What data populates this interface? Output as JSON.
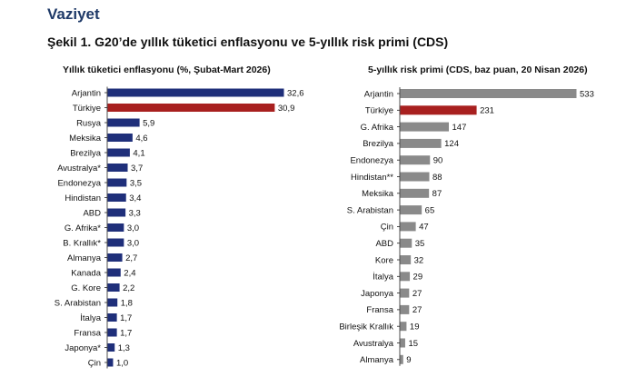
{
  "header": {
    "section_title": "Vaziyet",
    "figure_title": "Şekil 1. G20’de yıllık tüketici enflasyonu ve 5-yıllık risk primi (CDS)"
  },
  "colors": {
    "left_bar": "#1f2f7a",
    "right_bar": "#8a8a8a",
    "highlight": "#a8201f"
  },
  "chart_data": [
    {
      "type": "bar",
      "orientation": "horizontal",
      "title": "Yıllık tüketici enflasyonu (%, Şubat-Mart 2026)",
      "highlight_category": "Türkiye",
      "categories": [
        "Arjantin",
        "Türkiye",
        "Rusya",
        "Meksika",
        "Brezilya",
        "Avustralya*",
        "Endonezya",
        "Hindistan",
        "ABD",
        "G. Afrika*",
        "B. Krallık*",
        "Almanya",
        "Kanada",
        "G. Kore",
        "S. Arabistan",
        "İtalya",
        "Fransa",
        "Japonya*",
        "Çin"
      ],
      "values": [
        32.6,
        30.9,
        5.9,
        4.6,
        4.1,
        3.7,
        3.5,
        3.4,
        3.3,
        3.0,
        3.0,
        2.7,
        2.4,
        2.2,
        1.8,
        1.7,
        1.7,
        1.3,
        1.0
      ],
      "value_labels": [
        "32,6",
        "30,9",
        "5,9",
        "4,6",
        "4,1",
        "3,7",
        "3,5",
        "3,4",
        "3,3",
        "3,0",
        "3,0",
        "2,7",
        "2,4",
        "2,2",
        "1,8",
        "1,7",
        "1,7",
        "1,3",
        "1,0"
      ],
      "xlim": [
        0,
        32.6
      ]
    },
    {
      "type": "bar",
      "orientation": "horizontal",
      "title": "5-yıllık risk primi (CDS, baz puan, 20 Nisan 2026)",
      "highlight_category": "Türkiye",
      "categories": [
        "Arjantin",
        "Türkiye",
        "G. Afrika",
        "Brezilya",
        "Endonezya",
        "Hindistan**",
        "Meksika",
        "S. Arabistan",
        "Çin",
        "ABD",
        "Kore",
        "İtalya",
        "Japonya",
        "Fransa",
        "Birleşik Krallık",
        "Avustralya",
        "Almanya"
      ],
      "values": [
        533,
        231,
        147,
        124,
        90,
        88,
        87,
        65,
        47,
        35,
        32,
        29,
        27,
        27,
        19,
        15,
        9
      ],
      "value_labels": [
        "533",
        "231",
        "147",
        "124",
        "90",
        "88",
        "87",
        "65",
        "47",
        "35",
        "32",
        "29",
        "27",
        "27",
        "19",
        "15",
        "9"
      ],
      "xlim": [
        0,
        533
      ]
    }
  ]
}
